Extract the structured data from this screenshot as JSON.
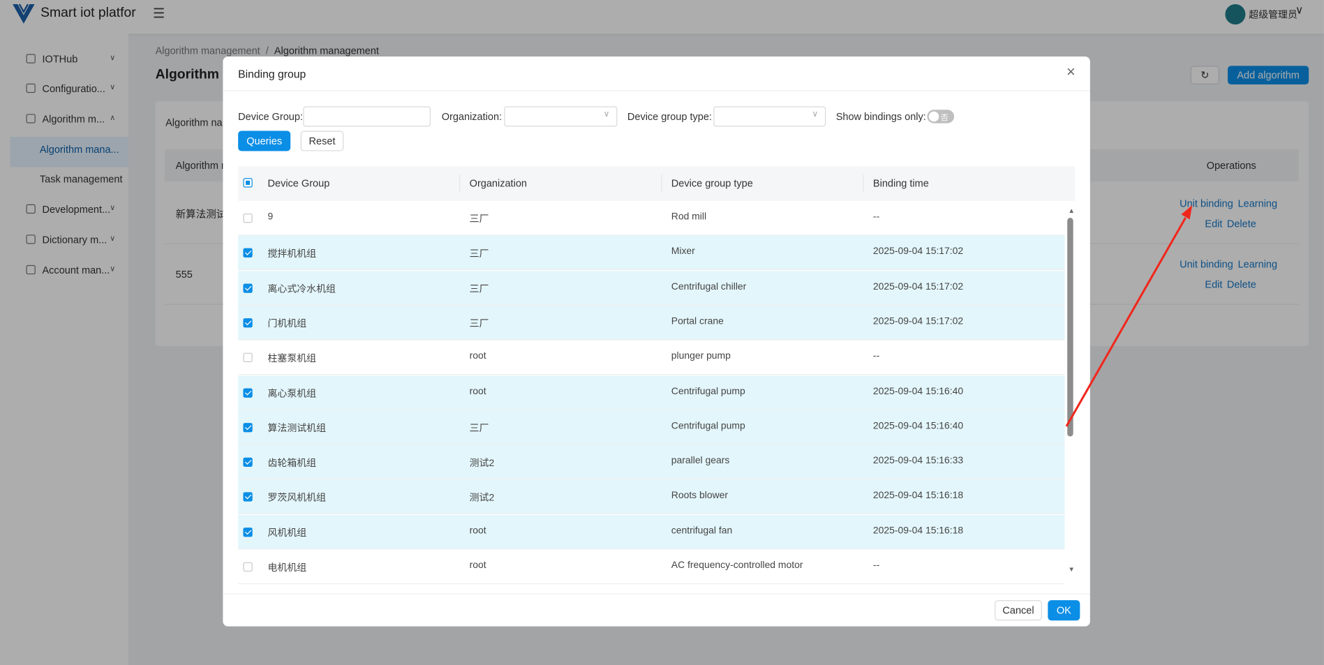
{
  "header": {
    "title": "Smart iot platfor",
    "user": "超级管理员"
  },
  "sidebar": {
    "items": [
      "IOTHub",
      "Configuratio...",
      "Algorithm m...",
      "Algorithm mana...",
      "Task management",
      "Development...",
      "Dictionary m...",
      "Account man..."
    ]
  },
  "breadcrumb": [
    "Algorithm management",
    "Algorithm management"
  ],
  "page": {
    "title": "Algorithm",
    "add_button": "Add algorithm",
    "filter_label": "Algorithm nar",
    "table": {
      "headers": [
        "Algorithm n",
        "Operations"
      ],
      "rows": [
        {
          "name": "新算法测试",
          "actions": [
            "Unit binding",
            "Learning",
            "Edit",
            "Delete"
          ]
        },
        {
          "name": "555",
          "actions": [
            "Unit binding",
            "Learning",
            "Edit",
            "Delete"
          ]
        }
      ]
    }
  },
  "modal": {
    "title": "Binding group",
    "filters": [
      "Device Group:",
      "Organization:",
      "Device group type:",
      "Show bindings only:"
    ],
    "toggle": "否",
    "buttons": [
      "Queries",
      "Reset"
    ],
    "table": {
      "headers": [
        "Device Group",
        "Organization",
        "Device group type",
        "Binding time"
      ],
      "rows": [
        {
          "checked": false,
          "cells": [
            "9",
            "三厂",
            "Rod mill",
            "--"
          ]
        },
        {
          "checked": true,
          "cells": [
            "搅拌机机组",
            "三厂",
            "Mixer",
            "2025-09-04 15:17:02"
          ]
        },
        {
          "checked": true,
          "cells": [
            "离心式冷水机组",
            "三厂",
            "Centrifugal chiller",
            "2025-09-04 15:17:02"
          ]
        },
        {
          "checked": true,
          "cells": [
            "门机机组",
            "三厂",
            "Portal crane",
            "2025-09-04 15:17:02"
          ]
        },
        {
          "checked": false,
          "cells": [
            "柱塞泵机组",
            "root",
            "plunger pump",
            "--"
          ]
        },
        {
          "checked": true,
          "cells": [
            "离心泵机组",
            "root",
            "Centrifugal pump",
            "2025-09-04 15:16:40"
          ]
        },
        {
          "checked": true,
          "cells": [
            "算法测试机组",
            "三厂",
            "Centrifugal pump",
            "2025-09-04 15:16:40"
          ]
        },
        {
          "checked": true,
          "cells": [
            "齿轮箱机组",
            "测试2",
            "parallel gears",
            "2025-09-04 15:16:33"
          ]
        },
        {
          "checked": true,
          "cells": [
            "罗茨风机机组",
            "测试2",
            "Roots blower",
            "2025-09-04 15:16:18"
          ]
        },
        {
          "checked": true,
          "cells": [
            "风机机组",
            "root",
            "centrifugal fan",
            "2025-09-04 15:16:18"
          ]
        },
        {
          "checked": false,
          "cells": [
            "电机机组",
            "root",
            "AC frequency-controlled motor",
            "--"
          ]
        }
      ]
    },
    "footer": [
      "Cancel",
      "OK"
    ]
  }
}
